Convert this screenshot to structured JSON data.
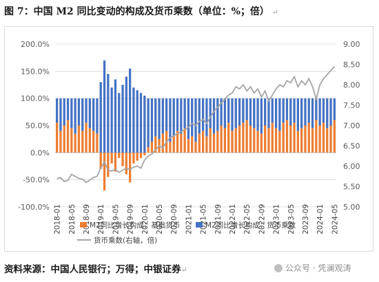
{
  "title": "图 7：中国 M2 同比变动的构成及货币乘数（单位：%；倍）",
  "source": "资料来源：中国人民银行；万得；中银证券",
  "watermark": "公众号 · 凭澜观涛",
  "chart_data": {
    "type": "bar",
    "x": [
      "2018-01",
      "2018-02",
      "2018-03",
      "2018-04",
      "2018-05",
      "2018-06",
      "2018-07",
      "2018-08",
      "2018-09",
      "2018-10",
      "2018-11",
      "2018-12",
      "2019-01",
      "2019-02",
      "2019-03",
      "2019-04",
      "2019-05",
      "2019-06",
      "2019-07",
      "2019-08",
      "2019-09",
      "2019-10",
      "2019-11",
      "2019-12",
      "2020-01",
      "2020-02",
      "2020-03",
      "2020-04",
      "2020-05",
      "2020-06",
      "2020-07",
      "2020-08",
      "2020-09",
      "2020-10",
      "2020-11",
      "2020-12",
      "2021-01",
      "2021-02",
      "2021-03",
      "2021-04",
      "2021-05",
      "2021-06",
      "2021-07",
      "2021-08",
      "2021-09",
      "2021-10",
      "2021-11",
      "2021-12",
      "2022-01",
      "2022-02",
      "2022-03",
      "2022-04",
      "2022-05",
      "2022-06",
      "2022-07",
      "2022-08",
      "2022-09",
      "2022-10",
      "2022-11",
      "2022-12",
      "2023-01",
      "2023-02",
      "2023-03",
      "2023-04",
      "2023-05",
      "2023-06",
      "2023-07",
      "2023-08",
      "2023-09",
      "2023-10",
      "2023-11",
      "2023-12",
      "2024-01",
      "2024-02",
      "2024-03",
      "2024-04",
      "2024-05"
    ],
    "tick_labels": [
      "2018-01",
      "2018-05",
      "2018-09",
      "2019-01",
      "2019-05",
      "2019-09",
      "2020-01",
      "2020-05",
      "2020-09",
      "2021-01",
      "2021-05",
      "2021-09",
      "2022-01",
      "2022-05",
      "2022-09",
      "2023-01",
      "2023-05",
      "2023-09",
      "2024-01",
      "2024-05"
    ],
    "series": [
      {
        "name": "M2同比增长构成：基础货币",
        "color": "#ED7D31",
        "values": [
          55,
          40,
          50,
          60,
          45,
          35,
          50,
          40,
          55,
          45,
          40,
          35,
          -30,
          -70,
          -45,
          -20,
          -35,
          -10,
          -25,
          -40,
          -55,
          -20,
          -15,
          -10,
          -5,
          10,
          20,
          30,
          25,
          35,
          40,
          20,
          30,
          40,
          35,
          45,
          25,
          30,
          20,
          35,
          40,
          30,
          45,
          35,
          40,
          50,
          45,
          55,
          40,
          45,
          50,
          55,
          60,
          50,
          45,
          40,
          35,
          50,
          45,
          55,
          45,
          40,
          55,
          60,
          50,
          55,
          40,
          45,
          50,
          55,
          45,
          60,
          50,
          55,
          45,
          50,
          60
        ]
      },
      {
        "name": "M2同比增长构成：货币乘数",
        "color": "#4472C4",
        "values": [
          45,
          60,
          50,
          40,
          55,
          65,
          50,
          60,
          45,
          55,
          60,
          65,
          130,
          170,
          145,
          120,
          135,
          110,
          125,
          140,
          155,
          120,
          115,
          110,
          105,
          90,
          80,
          70,
          75,
          65,
          60,
          80,
          70,
          60,
          65,
          55,
          75,
          70,
          80,
          65,
          60,
          70,
          55,
          65,
          60,
          50,
          55,
          45,
          60,
          55,
          50,
          45,
          40,
          50,
          55,
          60,
          65,
          50,
          55,
          45,
          55,
          60,
          45,
          40,
          50,
          45,
          60,
          55,
          50,
          45,
          55,
          40,
          50,
          45,
          55,
          50,
          40
        ]
      },
      {
        "name": "货币乘数(右轴，倍)",
        "color": "#A5A5A5",
        "axis": "right",
        "values": [
          5.7,
          5.72,
          5.62,
          5.65,
          5.8,
          5.75,
          5.7,
          5.68,
          5.6,
          5.66,
          5.72,
          5.75,
          5.95,
          6.1,
          5.9,
          5.88,
          5.92,
          5.85,
          5.9,
          5.95,
          5.92,
          5.98,
          6.0,
          5.95,
          6.15,
          6.25,
          6.3,
          6.4,
          6.5,
          6.45,
          6.6,
          6.7,
          6.75,
          6.8,
          6.85,
          6.9,
          6.95,
          7.05,
          7.0,
          7.1,
          7.15,
          7.05,
          7.2,
          7.35,
          7.45,
          7.55,
          7.65,
          7.75,
          7.8,
          7.95,
          7.9,
          8.0,
          7.85,
          7.95,
          7.8,
          7.9,
          7.7,
          7.85,
          7.6,
          7.75,
          7.9,
          8.0,
          7.95,
          8.1,
          8.05,
          8.2,
          7.95,
          8.1,
          8.0,
          8.15,
          7.95,
          7.65,
          8.0,
          8.15,
          8.25,
          8.35,
          8.45
        ]
      }
    ],
    "y_left": {
      "min": -100,
      "max": 200,
      "ticks": [
        "-100.0%",
        "-50.0%",
        "0.0%",
        "50.0%",
        "100.0%",
        "150.0%",
        "200.0%"
      ]
    },
    "y_right": {
      "min": 5.0,
      "max": 9.0,
      "ticks": [
        "5.00",
        "5.50",
        "6.00",
        "6.50",
        "7.00",
        "7.50",
        "8.00",
        "8.50",
        "9.00"
      ]
    },
    "legend": {
      "placement": "bottom",
      "items": [
        "M2同比增长构成：基础货币",
        "M2同比增长构成：货币乘数",
        "货币乘数(右轴，倍)"
      ]
    }
  }
}
